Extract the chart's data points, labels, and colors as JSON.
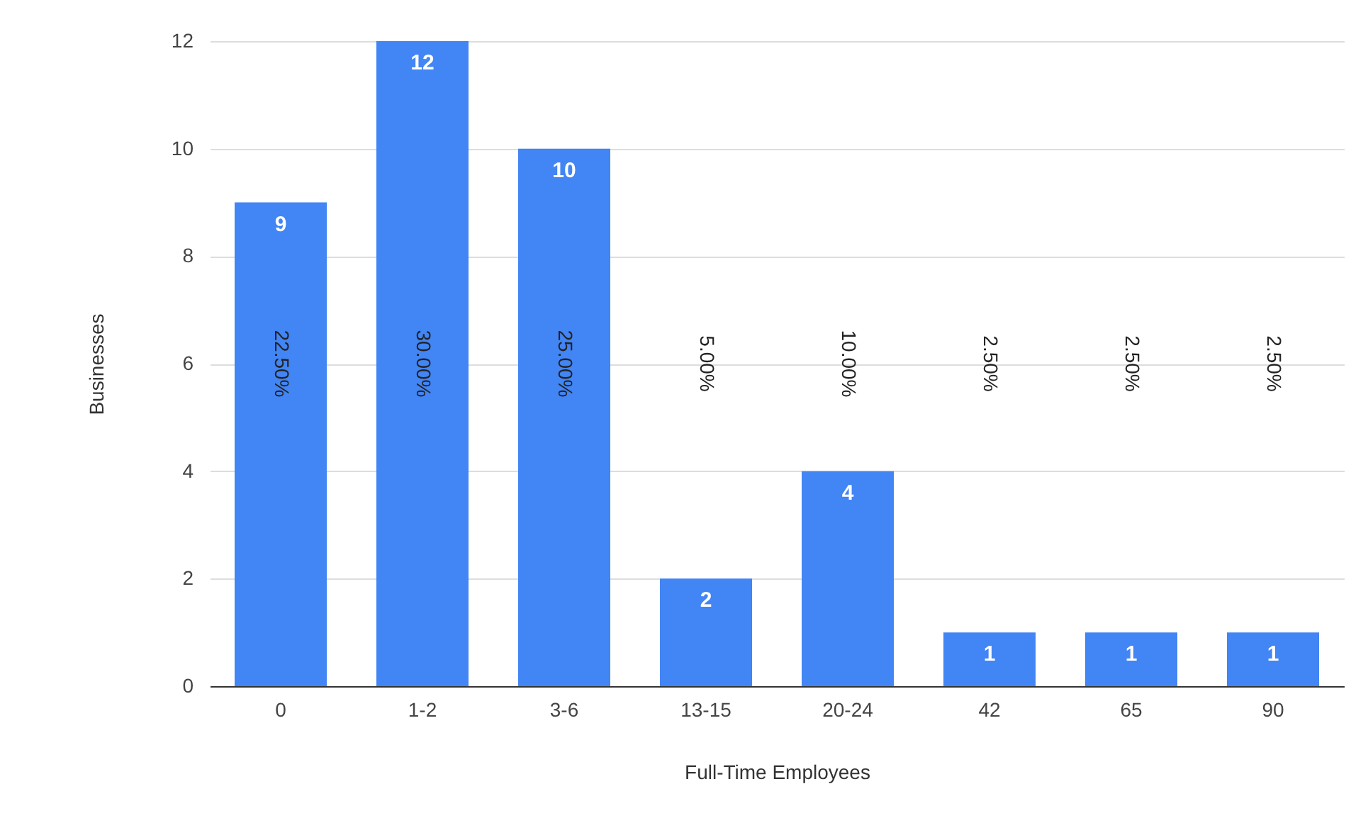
{
  "chart_data": {
    "type": "bar",
    "xlabel": "Full-Time Employees",
    "ylabel": "Businesses",
    "categories": [
      "0",
      "1-2",
      "3-6",
      "13-15",
      "20-24",
      "42",
      "65",
      "90"
    ],
    "values": [
      9,
      12,
      10,
      2,
      4,
      1,
      1,
      1
    ],
    "color": "#4285f4",
    "ylim": [
      0,
      12
    ],
    "yticks": [
      0,
      2,
      4,
      6,
      8,
      10,
      12
    ],
    "grid": "y",
    "data_labels": true,
    "annotations": [
      "22.50%",
      "30.00%",
      "25.00%",
      "5.00%",
      "10.00%",
      "2.50%",
      "2.50%",
      "2.50%"
    ]
  }
}
